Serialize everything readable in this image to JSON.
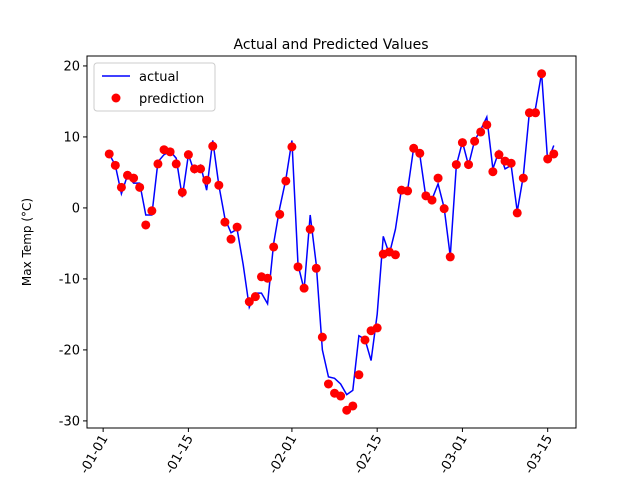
{
  "chart_data": {
    "type": "line",
    "title": "Actual and Predicted Values",
    "ylabel": "Max Temp (°C)",
    "x": [
      "01-02",
      "01-03",
      "01-04",
      "01-05",
      "01-06",
      "01-07",
      "01-08",
      "01-09",
      "01-10",
      "01-11",
      "01-12",
      "01-13",
      "01-14",
      "01-15",
      "01-16",
      "01-17",
      "01-18",
      "01-19",
      "01-20",
      "01-21",
      "01-22",
      "01-23",
      "01-24",
      "01-25",
      "01-26",
      "01-27",
      "01-28",
      "01-29",
      "01-30",
      "01-31",
      "02-01",
      "02-02",
      "02-03",
      "02-04",
      "02-05",
      "02-06",
      "02-07",
      "02-08",
      "02-09",
      "02-10",
      "02-11",
      "02-12",
      "02-13",
      "02-14",
      "02-15",
      "02-16",
      "02-17",
      "02-18",
      "02-19",
      "02-20",
      "02-21",
      "02-22",
      "02-23",
      "02-24",
      "02-25",
      "02-26",
      "02-27",
      "02-28",
      "03-01",
      "03-02",
      "03-03",
      "03-04",
      "03-05",
      "03-06",
      "03-07",
      "03-08",
      "03-09",
      "03-10",
      "03-11",
      "03-12",
      "03-13",
      "03-14",
      "03-15",
      "03-16"
    ],
    "series": [
      {
        "name": "actual",
        "color": "#0000ff",
        "style": "line",
        "values": [
          7.6,
          6,
          2,
          4.6,
          3.5,
          3.5,
          -1,
          -1,
          6.5,
          7.5,
          8,
          7,
          1.5,
          7.5,
          5,
          6,
          2.5,
          9.5,
          3.2,
          -1.5,
          -3.5,
          -3,
          -8,
          -14,
          -12,
          -12,
          -13.5,
          -5,
          0,
          4,
          9.5,
          -8,
          -11.5,
          -1,
          -8,
          -20,
          -23.8,
          -24,
          -24.8,
          -26.3,
          -25.7,
          -18,
          -18.5,
          -21.5,
          -15,
          -4,
          -6.5,
          -3,
          2.7,
          2.5,
          8.5,
          7.5,
          1.5,
          1.2,
          3.4,
          0,
          -6.8,
          6,
          9.3,
          6,
          9.5,
          11,
          12.8,
          5.5,
          8,
          5.5,
          6,
          -0.5,
          4.5,
          13.5,
          14,
          19,
          6.5,
          8.8
        ]
      },
      {
        "name": "prediction",
        "color": "#ff0000",
        "style": "marker",
        "values": [
          7.6,
          6,
          2.9,
          4.6,
          4.2,
          2.9,
          -2.4,
          -0.4,
          6.2,
          8.2,
          7.9,
          6.2,
          2.2,
          7.5,
          5.5,
          5.5,
          3.9,
          8.7,
          3.2,
          -2,
          -4.4,
          -2.7,
          null,
          -13.2,
          -12.5,
          -9.7,
          -9.9,
          -5.5,
          -0.9,
          3.8,
          8.6,
          -8.3,
          -11.3,
          -3,
          -8.5,
          -18.2,
          -24.8,
          -26.1,
          -26.5,
          -28.5,
          -27.9,
          -23.5,
          -18.6,
          -17.3,
          -16.9,
          -6.5,
          -6.2,
          -6.6,
          2.5,
          2.4,
          8.4,
          7.7,
          1.7,
          1.1,
          4.2,
          -0.1,
          -6.9,
          6.1,
          9.2,
          6.1,
          9.4,
          10.7,
          11.7,
          5.1,
          7.5,
          6.6,
          6.3,
          -0.7,
          4.2,
          13.4,
          13.4,
          18.9,
          6.9,
          7.6
        ]
      }
    ],
    "ylim": [
      -31,
      21.4
    ],
    "yticks": [
      -30,
      -20,
      -10,
      0,
      10,
      20
    ],
    "xticks": [
      {
        "value": "01-01",
        "label": "-01-01"
      },
      {
        "value": "01-15",
        "label": "-01-15"
      },
      {
        "value": "02-01",
        "label": "-02-01"
      },
      {
        "value": "02-15",
        "label": "-02-15"
      },
      {
        "value": "03-01",
        "label": "-03-01"
      },
      {
        "value": "03-15",
        "label": "-03-15"
      }
    ],
    "legend": "upper left"
  }
}
